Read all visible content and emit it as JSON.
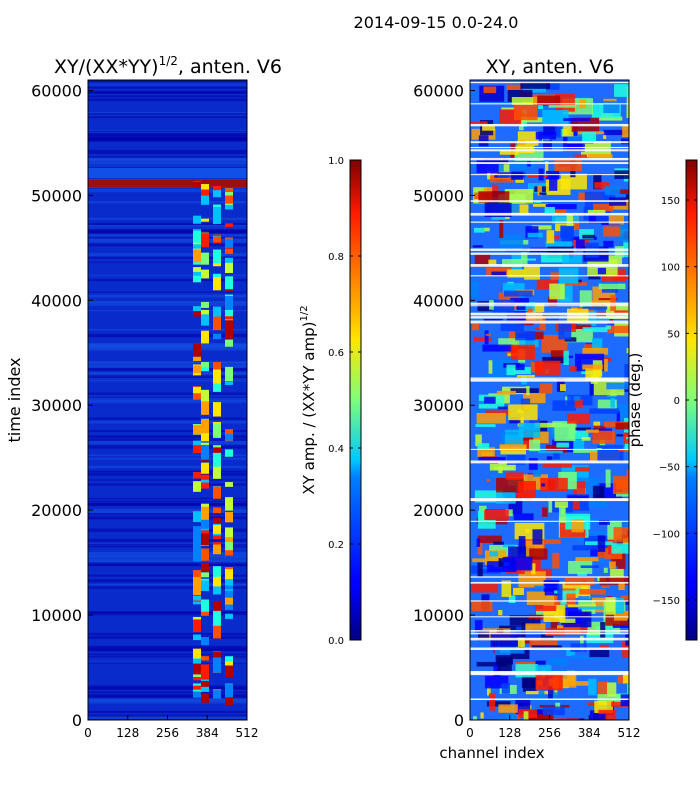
{
  "suptitle": "2014-09-15 0.0-24.0",
  "chart_data": [
    {
      "type": "heatmap",
      "title": "XY/(XX*YY)^{1/2}, anten. V6",
      "title_main": "XY/(XX*YY)",
      "title_exp": "1/2",
      "title_tail": ", anten. V6",
      "xlabel": "",
      "ylabel": "time index",
      "xlim": [
        0,
        512
      ],
      "ylim": [
        0,
        61000
      ],
      "xticks": [
        0,
        128,
        256,
        384,
        512
      ],
      "yticks": [
        0,
        10000,
        20000,
        30000,
        40000,
        50000,
        60000
      ],
      "colormap": "jet",
      "colorbar": {
        "label": "XY amp. / (XX*YY amp)^{1/2}",
        "label_main": "XY amp. / (XX*YY amp)",
        "label_exp": "1/2",
        "range": [
          0.0,
          1.0
        ],
        "ticks": [
          "0.0",
          "0.2",
          "0.4",
          "0.6",
          "0.8",
          "1.0"
        ],
        "tick_values": [
          0.0,
          0.2,
          0.4,
          0.6,
          0.8,
          1.0
        ]
      }
    },
    {
      "type": "heatmap",
      "title": "XY, anten. V6",
      "xlabel": "channel index",
      "ylabel": "",
      "xlim": [
        0,
        512
      ],
      "ylim": [
        0,
        61000
      ],
      "xticks": [
        0,
        128,
        256,
        384,
        512
      ],
      "yticks": [
        0,
        10000,
        20000,
        30000,
        40000,
        50000,
        60000
      ],
      "colormap": "jet",
      "colorbar": {
        "label": "phase (deg.)",
        "range": [
          -180,
          180
        ],
        "ticks": [
          "−150",
          "−100",
          "−50",
          "0",
          "50",
          "100",
          "150"
        ],
        "tick_values": [
          -150,
          -100,
          -50,
          0,
          50,
          100,
          150
        ]
      }
    }
  ]
}
